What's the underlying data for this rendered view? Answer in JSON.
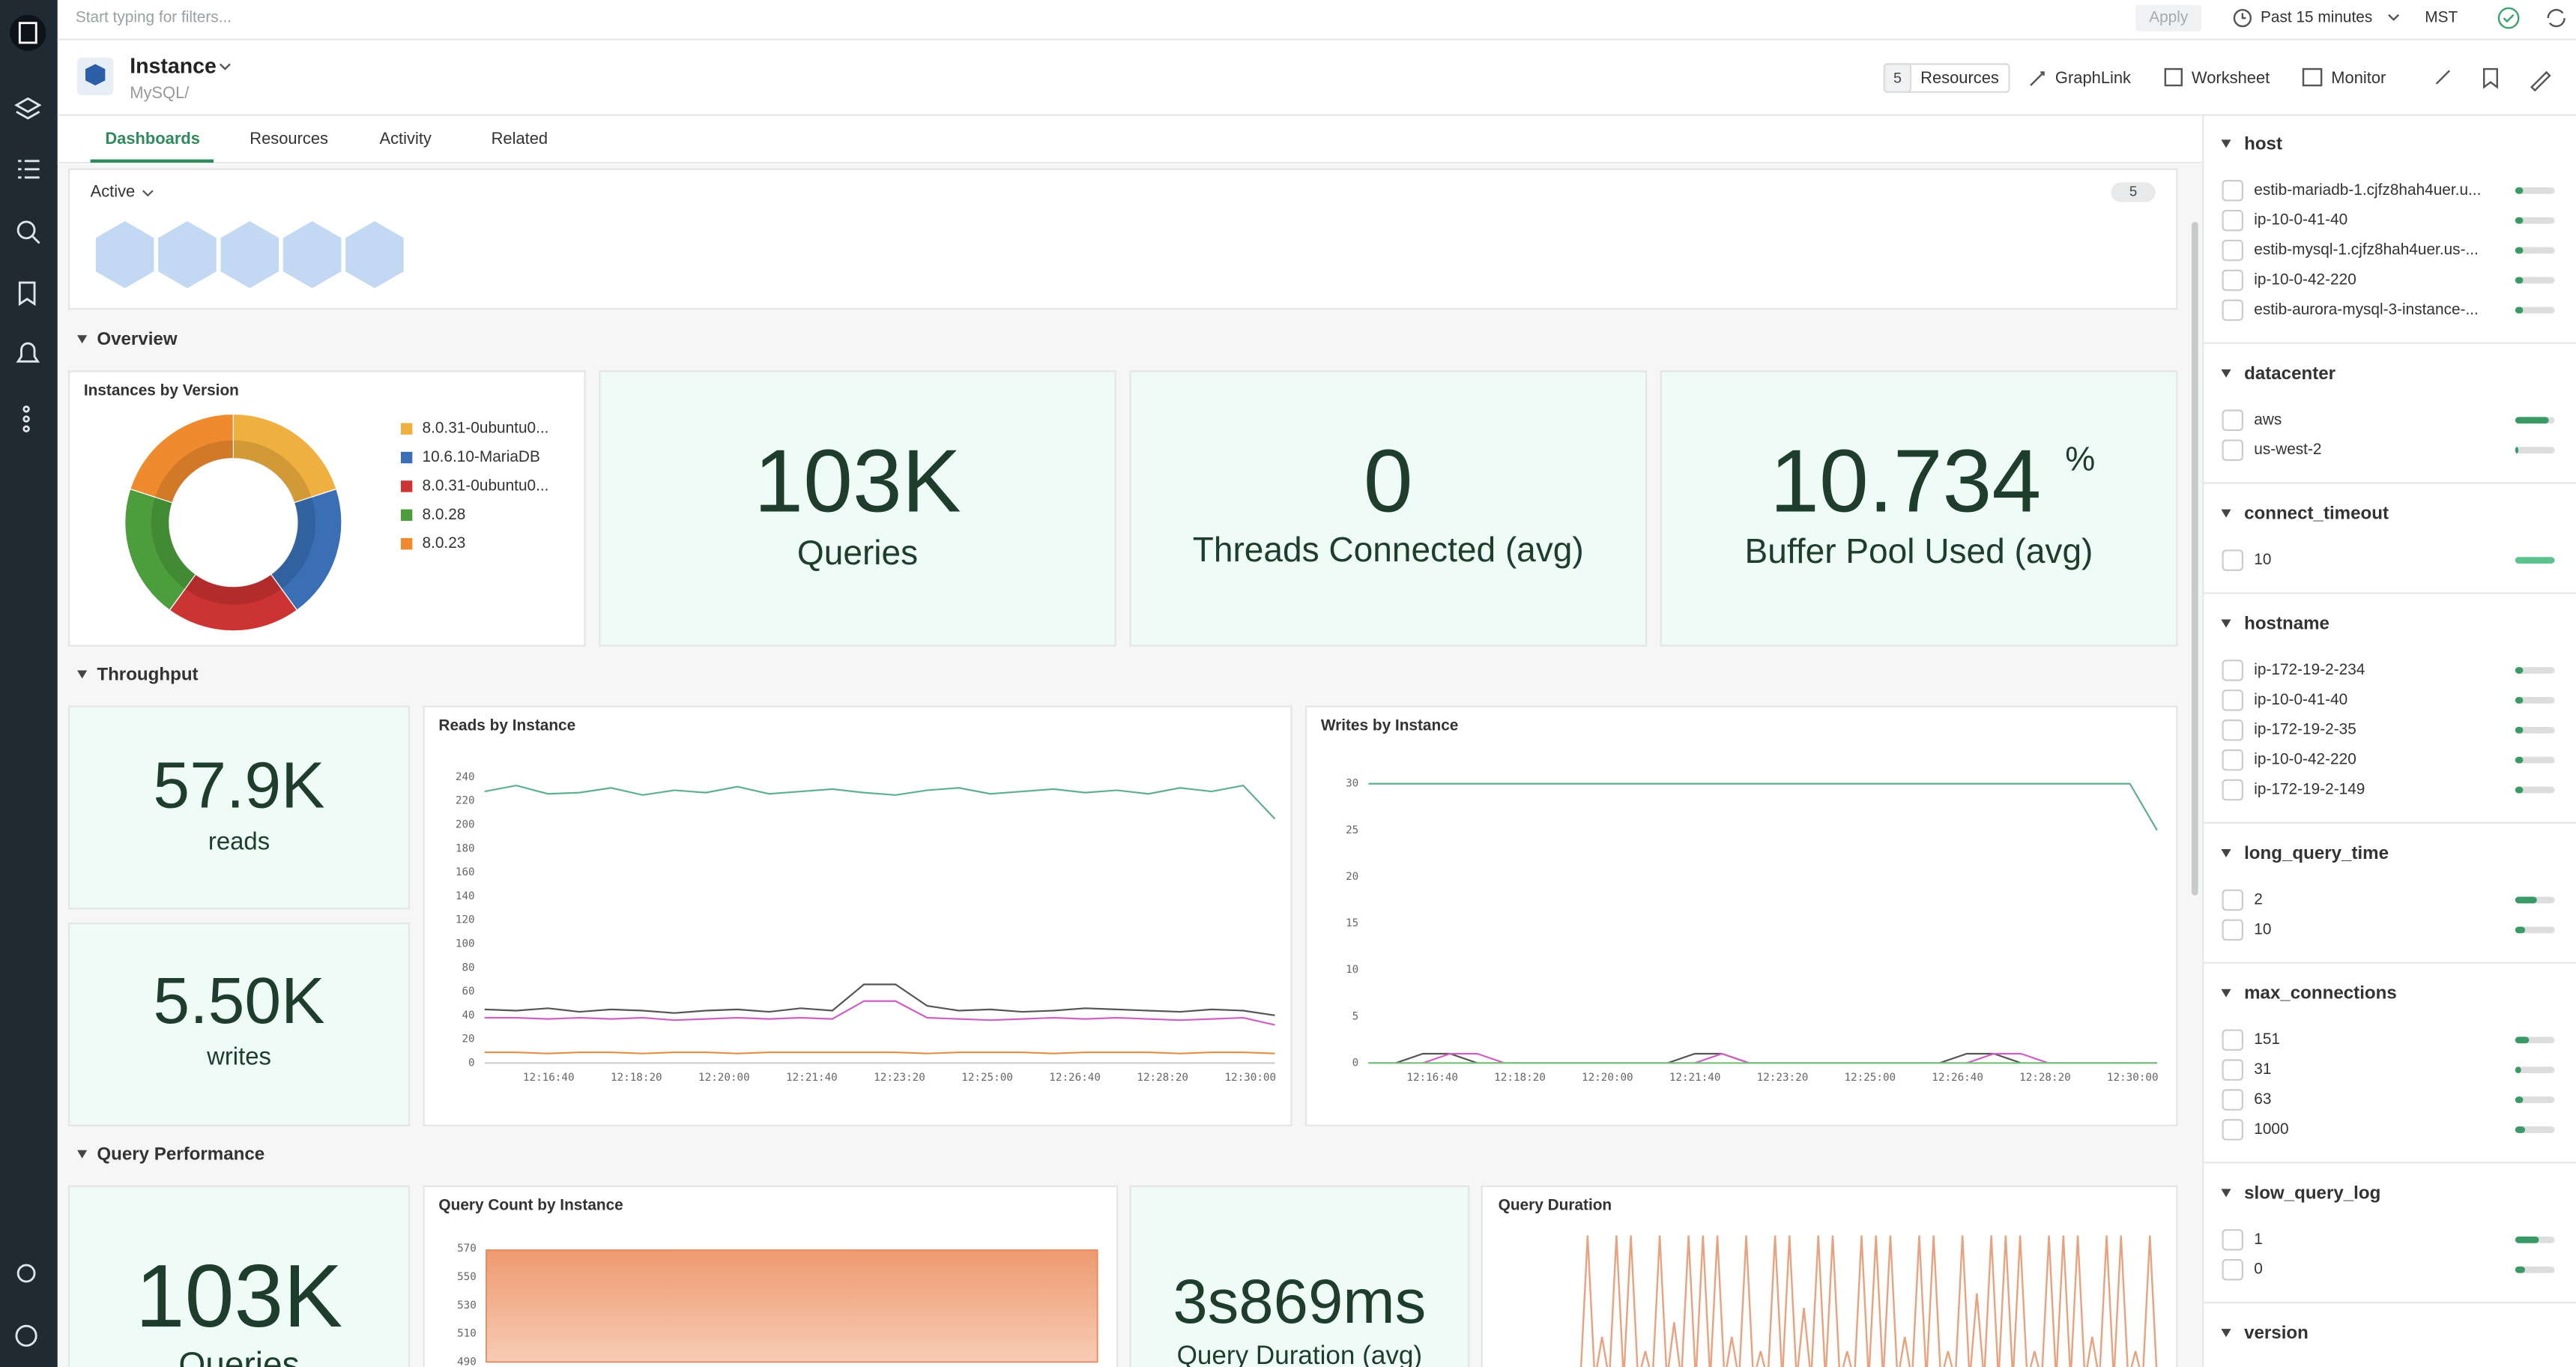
{
  "filter_bar": {
    "placeholder": "Start typing for filters...",
    "apply": "Apply",
    "time_range": "Past 15 minutes",
    "timezone": "MST"
  },
  "header": {
    "title": "Instance",
    "subtitle": "MySQL/",
    "resources_count": 5,
    "actions": [
      "Resources",
      "GraphLink",
      "Worksheet",
      "Monitor"
    ]
  },
  "tabs": [
    "Dashboards",
    "Resources",
    "Activity",
    "Related"
  ],
  "active_panel": {
    "label": "Active",
    "count": 5
  },
  "sections": [
    "Overview",
    "Throughput",
    "Query Performance"
  ],
  "instances_by_version": {
    "type": "pie",
    "title": "Instances by Version",
    "categories": [
      "8.0.31-0ubuntu0...",
      "10.6.10-MariaDB",
      "8.0.31-0ubuntu0...",
      "8.0.28",
      "8.0.23"
    ],
    "values": [
      1,
      1,
      1,
      1,
      1
    ],
    "colors": [
      "#f0b03f",
      "#3a6fb5",
      "#cc3333",
      "#4c9e3c",
      "#ef8a2e"
    ]
  },
  "stats": [
    {
      "value": "103K",
      "label": "Queries"
    },
    {
      "value": "0",
      "label": "Threads Connected (avg)"
    },
    {
      "value": "10.734",
      "unit": "%",
      "label": "Buffer Pool Used (avg)"
    },
    {
      "value": "57.9K",
      "label": "reads"
    },
    {
      "value": "5.50K",
      "label": "writes"
    },
    {
      "value": "103K",
      "label": "Queries"
    },
    {
      "value": "3s869ms",
      "label": "Query Duration (avg)"
    }
  ],
  "reads_chart": {
    "type": "line",
    "title": "Reads by Instance",
    "categories": [
      "12:16:40",
      "12:18:20",
      "12:20:00",
      "12:21:40",
      "12:23:20",
      "12:25:00",
      "12:26:40",
      "12:28:20",
      "12:30:00"
    ],
    "ylim": [
      0,
      240
    ],
    "yticks": [
      0,
      20,
      40,
      60,
      80,
      100,
      120,
      140,
      160,
      180,
      200,
      220,
      240
    ],
    "series": [
      {
        "color": "#5fb08f",
        "values": [
          228,
          233,
          226,
          227,
          231,
          225,
          229,
          227,
          232,
          226,
          228,
          230,
          227,
          225,
          229,
          231,
          226,
          228,
          230,
          227,
          229,
          226,
          231,
          228,
          233,
          205
        ]
      },
      {
        "color": "#555555",
        "values": [
          45,
          44,
          46,
          43,
          45,
          44,
          42,
          44,
          45,
          43,
          46,
          44,
          66,
          66,
          48,
          44,
          45,
          43,
          44,
          46,
          45,
          44,
          43,
          45,
          44,
          40
        ]
      },
      {
        "color": "#d15fc2",
        "values": [
          38,
          38,
          37,
          38,
          37,
          38,
          36,
          37,
          38,
          37,
          38,
          37,
          52,
          52,
          38,
          37,
          36,
          37,
          38,
          37,
          38,
          37,
          36,
          37,
          38,
          32
        ]
      },
      {
        "color": "#e0924d",
        "values": [
          9,
          9,
          8,
          9,
          9,
          8,
          9,
          9,
          8,
          9,
          9,
          9,
          9,
          9,
          8,
          9,
          9,
          9,
          8,
          9,
          9,
          9,
          8,
          9,
          9,
          8
        ]
      }
    ]
  },
  "writes_chart": {
    "type": "line",
    "title": "Writes by Instance",
    "categories": [
      "12:16:40",
      "12:18:20",
      "12:20:00",
      "12:21:40",
      "12:23:20",
      "12:25:00",
      "12:26:40",
      "12:28:20",
      "12:30:00"
    ],
    "ylim": [
      0,
      30
    ],
    "yticks": [
      0,
      5,
      10,
      15,
      20,
      25,
      30
    ],
    "series": [
      {
        "color": "#5fb08f",
        "values": [
          30,
          30,
          30,
          30,
          30,
          30,
          30,
          30,
          30,
          30,
          30,
          30,
          30,
          30,
          30,
          30,
          30,
          30,
          30,
          30,
          30,
          30,
          30,
          30,
          30,
          30,
          30,
          30,
          30,
          25
        ]
      },
      {
        "color": "#555555",
        "values": [
          0,
          0,
          1,
          1,
          0,
          0,
          0,
          0,
          0,
          0,
          0,
          0,
          1,
          1,
          0,
          0,
          0,
          0,
          0,
          0,
          0,
          0,
          1,
          1,
          0,
          0,
          0,
          0,
          0,
          0
        ]
      },
      {
        "color": "#d15fc2",
        "values": [
          0,
          0,
          0,
          1,
          1,
          0,
          0,
          0,
          0,
          0,
          0,
          0,
          0,
          1,
          0,
          0,
          0,
          0,
          0,
          0,
          0,
          0,
          0,
          1,
          1,
          0,
          0,
          0,
          0,
          0
        ]
      },
      {
        "color": "#7ac27a",
        "values": [
          0,
          0,
          0,
          0,
          0,
          0,
          0,
          0,
          0,
          0,
          0,
          0,
          0,
          0,
          0,
          0,
          0,
          0,
          0,
          0,
          0,
          0,
          0,
          0,
          0,
          0,
          0,
          0,
          0,
          0
        ]
      }
    ]
  },
  "query_count_chart": {
    "type": "area",
    "title": "Query Count by Instance",
    "ylim": [
      490,
      570
    ],
    "yticks": [
      490,
      510,
      530,
      550,
      570
    ],
    "values": [
      569,
      569,
      569,
      569,
      569,
      569,
      569,
      569,
      569,
      569,
      569,
      569,
      569,
      569,
      569,
      569,
      569,
      569,
      569,
      569,
      569,
      569,
      569,
      569
    ]
  },
  "query_duration_chart": {
    "type": "bar",
    "title": "Query Duration",
    "ylim": [
      0,
      10
    ],
    "color": "#e9a27f",
    "values": [
      10,
      3,
      10,
      10,
      2,
      10,
      4,
      10,
      10,
      10,
      3,
      10,
      2,
      10,
      10,
      5,
      10,
      10,
      2,
      10,
      10,
      10,
      3,
      10,
      10,
      2,
      10,
      6,
      10,
      10,
      10,
      2,
      10,
      10,
      10,
      3,
      10,
      10,
      2,
      10
    ]
  },
  "facets": [
    {
      "name": "host",
      "items": [
        {
          "label": "estib-mariadb-1.cjfz8hah4uer.u...",
          "value": 0.2
        },
        {
          "label": "ip-10-0-41-40",
          "value": 0.2
        },
        {
          "label": "estib-mysql-1.cjfz8hah4uer.us-...",
          "value": 0.2
        },
        {
          "label": "ip-10-0-42-220",
          "value": 0.2
        },
        {
          "label": "estib-aurora-mysql-3-instance-...",
          "value": 0.2
        }
      ]
    },
    {
      "name": "datacenter",
      "items": [
        {
          "label": "aws",
          "value": 0.85
        },
        {
          "label": "us-west-2",
          "value": 0.08
        }
      ]
    },
    {
      "name": "connect_timeout",
      "items": [
        {
          "label": "10",
          "value": 1
        }
      ]
    },
    {
      "name": "hostname",
      "items": [
        {
          "label": "ip-172-19-2-234",
          "value": 0.2
        },
        {
          "label": "ip-10-0-41-40",
          "value": 0.2
        },
        {
          "label": "ip-172-19-2-35",
          "value": 0.2
        },
        {
          "label": "ip-10-0-42-220",
          "value": 0.2
        },
        {
          "label": "ip-172-19-2-149",
          "value": 0.2
        }
      ]
    },
    {
      "name": "long_query_time",
      "items": [
        {
          "label": "2",
          "value": 0.55
        },
        {
          "label": "10",
          "value": 0.25
        }
      ]
    },
    {
      "name": "max_connections",
      "items": [
        {
          "label": "151",
          "value": 0.35
        },
        {
          "label": "31",
          "value": 0.15
        },
        {
          "label": "63",
          "value": 0.2
        },
        {
          "label": "1000",
          "value": 0.25
        }
      ]
    },
    {
      "name": "slow_query_log",
      "items": [
        {
          "label": "1",
          "value": 0.6
        },
        {
          "label": "0",
          "value": 0.25
        }
      ]
    },
    {
      "name": "version",
      "items": []
    }
  ]
}
